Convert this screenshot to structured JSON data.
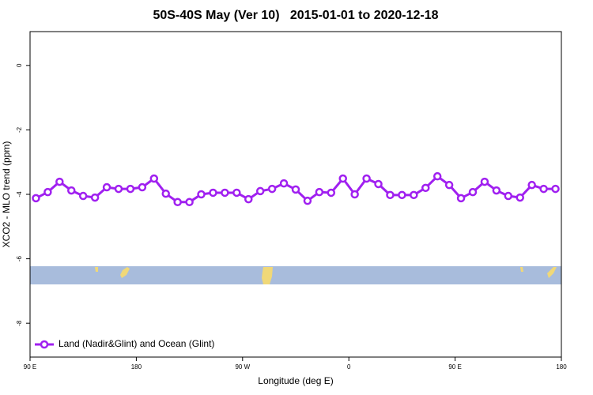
{
  "chart_data": {
    "type": "line",
    "title": "50S-40S May (Ver 10)   2015-01-01 to 2020-12-18",
    "xlabel": "Longitude (deg E)",
    "ylabel": "XCO2 - MLO trend (ppm)",
    "xlim": [
      90,
      540
    ],
    "ylim": [
      -9.05,
      1.05
    ],
    "xticks": [
      {
        "value": 90,
        "label": "90 E"
      },
      180,
      {
        "value": 270,
        "label": "90 W"
      },
      {
        "value": 360,
        "label": "0"
      },
      {
        "value": 450,
        "label": "90 E"
      },
      {
        "value": 540,
        "label": "180"
      }
    ],
    "yticks": [
      0,
      -2,
      -4,
      -6,
      -8
    ],
    "legend": "bottom-left",
    "x": [
      95,
      105,
      115,
      125,
      135,
      145,
      155,
      165,
      175,
      185,
      195,
      205,
      215,
      225,
      235,
      245,
      255,
      265,
      275,
      285,
      295,
      305,
      315,
      325,
      335,
      345,
      355,
      365,
      375,
      385,
      395,
      405,
      415,
      425,
      435,
      445,
      455,
      465,
      475,
      485,
      495,
      505,
      515,
      525,
      535
    ],
    "series": [
      {
        "name": "Land (Nadir&Glint) and Ocean (Glint)",
        "color": "#a020f0",
        "values": [
          -4.12,
          -3.93,
          -3.61,
          -3.88,
          -4.05,
          -4.1,
          -3.78,
          -3.83,
          -3.83,
          -3.78,
          -3.51,
          -3.98,
          -4.24,
          -4.24,
          -4.0,
          -3.95,
          -3.95,
          -3.95,
          -4.15,
          -3.9,
          -3.83,
          -3.66,
          -3.85,
          -4.2,
          -3.93,
          -3.95,
          -3.51,
          -4.0,
          -3.51,
          -3.68,
          -4.02,
          -4.02,
          -4.02,
          -3.8,
          -3.44,
          -3.71,
          -4.12,
          -3.93,
          -3.61,
          -3.88,
          -4.05,
          -4.1,
          -3.71,
          -3.83,
          -3.83
        ]
      }
    ]
  }
}
